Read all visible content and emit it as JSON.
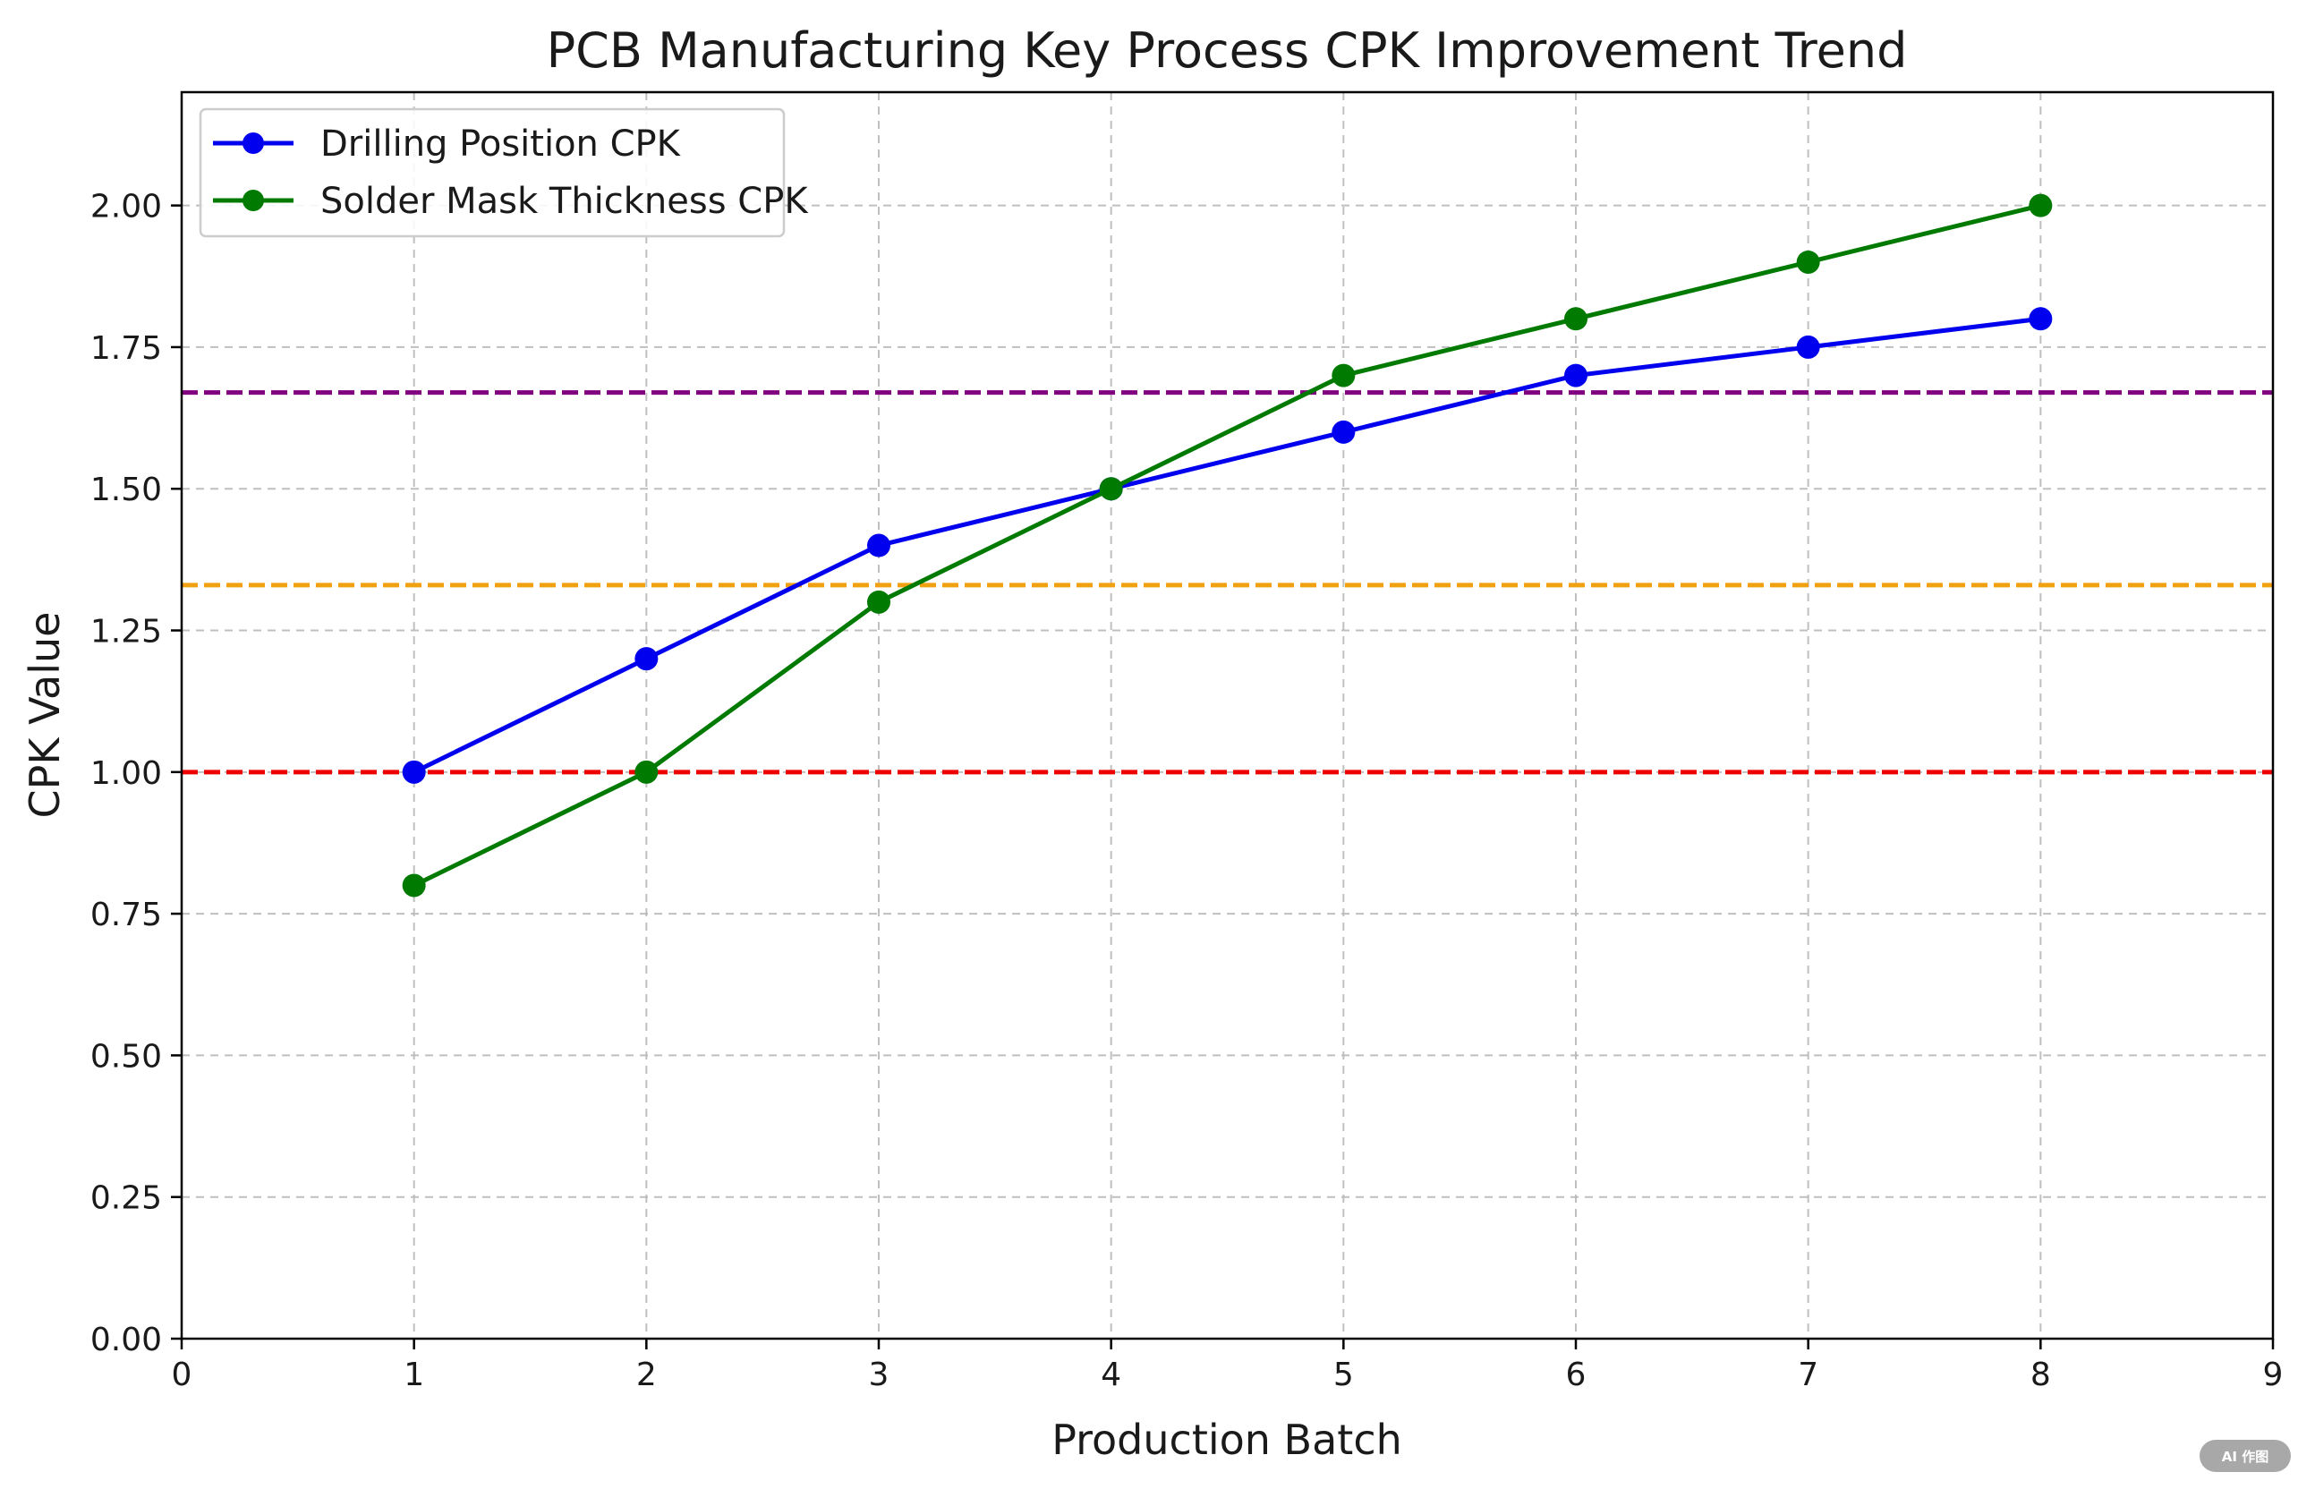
{
  "chart_data": {
    "type": "line",
    "title": "PCB Manufacturing Key Process CPK Improvement Trend",
    "xlabel": "Production Batch",
    "ylabel": "CPK Value",
    "xlim": [
      0,
      9
    ],
    "ylim": [
      0,
      2.2
    ],
    "x_ticks": [
      0,
      1,
      2,
      3,
      4,
      5,
      6,
      7,
      8,
      9
    ],
    "y_ticks": [
      0.0,
      0.25,
      0.5,
      0.75,
      1.0,
      1.25,
      1.5,
      1.75,
      2.0
    ],
    "y_tick_labels": [
      "0.00",
      "0.25",
      "0.50",
      "0.75",
      "1.00",
      "1.25",
      "1.50",
      "1.75",
      "2.00"
    ],
    "grid": true,
    "legend_position": "top-left",
    "x": [
      1,
      2,
      3,
      4,
      5,
      6,
      7,
      8
    ],
    "series": [
      {
        "name": "Drilling Position CPK",
        "color": "#0000ee",
        "values": [
          1.0,
          1.2,
          1.4,
          1.5,
          1.6,
          1.7,
          1.75,
          1.8
        ]
      },
      {
        "name": "Solder Mask Thickness CPK",
        "color": "#007a00",
        "values": [
          0.8,
          1.0,
          1.3,
          1.5,
          1.7,
          1.8,
          1.9,
          2.0
        ]
      }
    ],
    "reference_lines": [
      {
        "value": 1.0,
        "color": "#ee0000"
      },
      {
        "value": 1.33,
        "color": "#f0a010"
      },
      {
        "value": 1.67,
        "color": "#800080"
      }
    ]
  },
  "badge": {
    "label": "AI 作图"
  }
}
